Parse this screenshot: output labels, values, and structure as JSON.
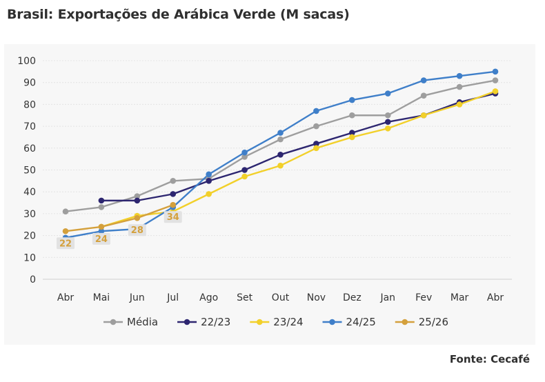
{
  "title": "Brasil: Exportações de Arábica Verde (M sacas)",
  "source": "Fonte: Cecafé",
  "chart_data": {
    "type": "line",
    "categories": [
      "Abr",
      "Mai",
      "Jun",
      "Jul",
      "Ago",
      "Set",
      "Out",
      "Nov",
      "Dez",
      "Jan",
      "Fev",
      "Mar",
      "Abr"
    ],
    "ylim": [
      0,
      100
    ],
    "yticks": [
      0,
      10,
      20,
      30,
      40,
      50,
      60,
      70,
      80,
      90,
      100
    ],
    "grid": true,
    "legend_position": "bottom",
    "series": [
      {
        "name": "Média",
        "color": "#9e9e9e",
        "values": [
          31,
          33,
          38,
          45,
          46,
          56,
          64,
          70,
          75,
          75,
          84,
          88,
          91
        ]
      },
      {
        "name": "22/23",
        "color": "#2d2670",
        "values": [
          null,
          36,
          36,
          39,
          45,
          50,
          57,
          62,
          67,
          72,
          75,
          81,
          85
        ]
      },
      {
        "name": "23/24",
        "color": "#f2d02a",
        "values": [
          null,
          24,
          29,
          31,
          39,
          47,
          52,
          60,
          65,
          69,
          75,
          80,
          86
        ]
      },
      {
        "name": "24/25",
        "color": "#3f7fc9",
        "values": [
          19,
          22,
          23,
          33,
          48,
          58,
          67,
          77,
          82,
          85,
          91,
          93,
          95
        ]
      },
      {
        "name": "25/26",
        "color": "#d4a03c",
        "values": [
          22,
          24,
          28,
          34,
          null,
          null,
          null,
          null,
          null,
          null,
          null,
          null,
          null
        ]
      }
    ],
    "data_labels": [
      {
        "series": "25/26",
        "index": 0,
        "text": "22"
      },
      {
        "series": "25/26",
        "index": 1,
        "text": "24"
      },
      {
        "series": "25/26",
        "index": 2,
        "text": "28"
      },
      {
        "series": "25/26",
        "index": 3,
        "text": "34"
      }
    ]
  }
}
